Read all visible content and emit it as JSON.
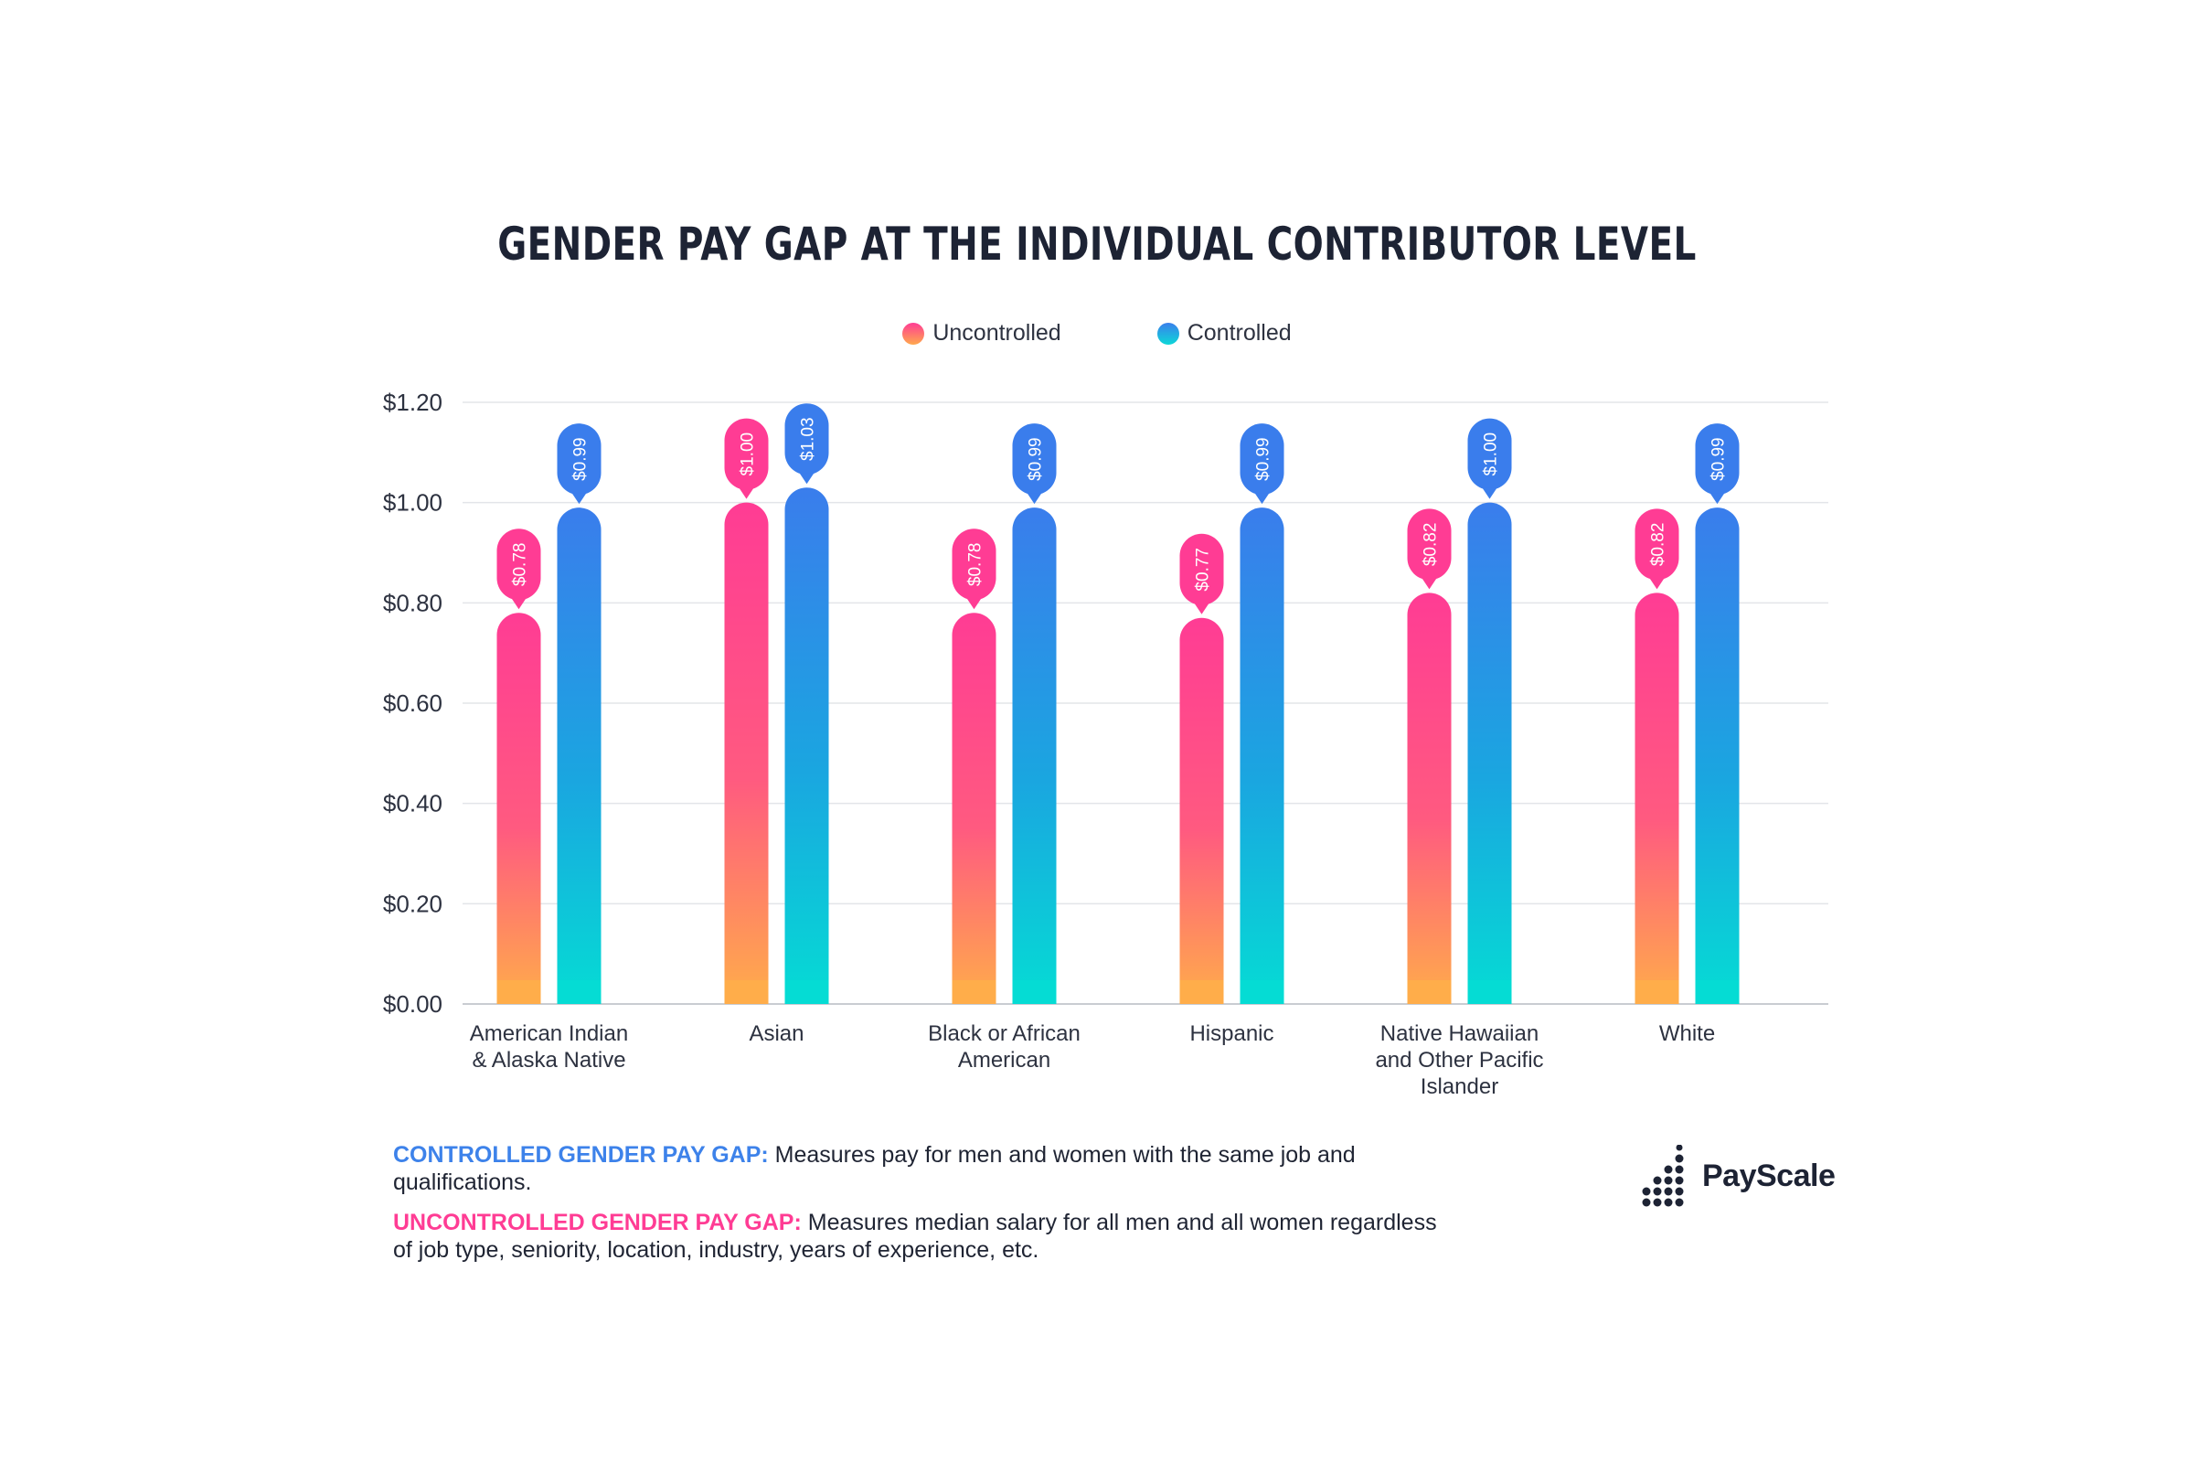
{
  "title": "GENDER PAY GAP AT THE INDIVIDUAL CONTRIBUTOR LEVEL",
  "legend": {
    "uncontrolled": "Uncontrolled",
    "controlled": "Controlled"
  },
  "notes": {
    "controlled_label": "CONTROLLED GENDER PAY GAP:",
    "controlled_text": " Measures pay for men and women with the same job and qualifications.",
    "uncontrolled_label": "UNCONTROLLED GENDER PAY GAP:",
    "uncontrolled_text": " Measures median salary for all men and all women regardless of job type, seniority, location, industry, years of experience, etc."
  },
  "brand": {
    "name": "PayScale"
  },
  "colors": {
    "uncontrolled_top": "#ff3c94",
    "uncontrolled_bottom": "#ffad4a",
    "controlled_top": "#3a7dec",
    "controlled_bottom": "#05dcd4",
    "title": "#1d2334"
  },
  "chart_data": {
    "type": "bar",
    "title": "GENDER PAY GAP AT THE INDIVIDUAL CONTRIBUTOR LEVEL",
    "xlabel": "",
    "ylabel": "",
    "ylim": [
      0,
      1.2
    ],
    "yticks": [
      "$0.00",
      "$0.20",
      "$0.40",
      "$0.60",
      "$0.80",
      "$1.00",
      "$1.20"
    ],
    "categories": [
      [
        "American Indian",
        "& Alaska Native"
      ],
      [
        "Asian"
      ],
      [
        "Black or African",
        "American"
      ],
      [
        "Hispanic"
      ],
      [
        "Native Hawaiian",
        "and Other Pacific",
        "Islander"
      ],
      [
        "White"
      ]
    ],
    "series": [
      {
        "name": "Uncontrolled",
        "values": [
          0.78,
          1.0,
          0.78,
          0.77,
          0.82,
          0.82
        ],
        "labels": [
          "$0.78",
          "$1.00",
          "$0.78",
          "$0.77",
          "$0.82",
          "$0.82"
        ]
      },
      {
        "name": "Controlled",
        "values": [
          0.99,
          1.03,
          0.99,
          0.99,
          1.0,
          0.99
        ],
        "labels": [
          "$0.99",
          "$1.03",
          "$0.99",
          "$0.99",
          "$1.00",
          "$0.99"
        ]
      }
    ],
    "legend": "top-center",
    "grid": true
  }
}
